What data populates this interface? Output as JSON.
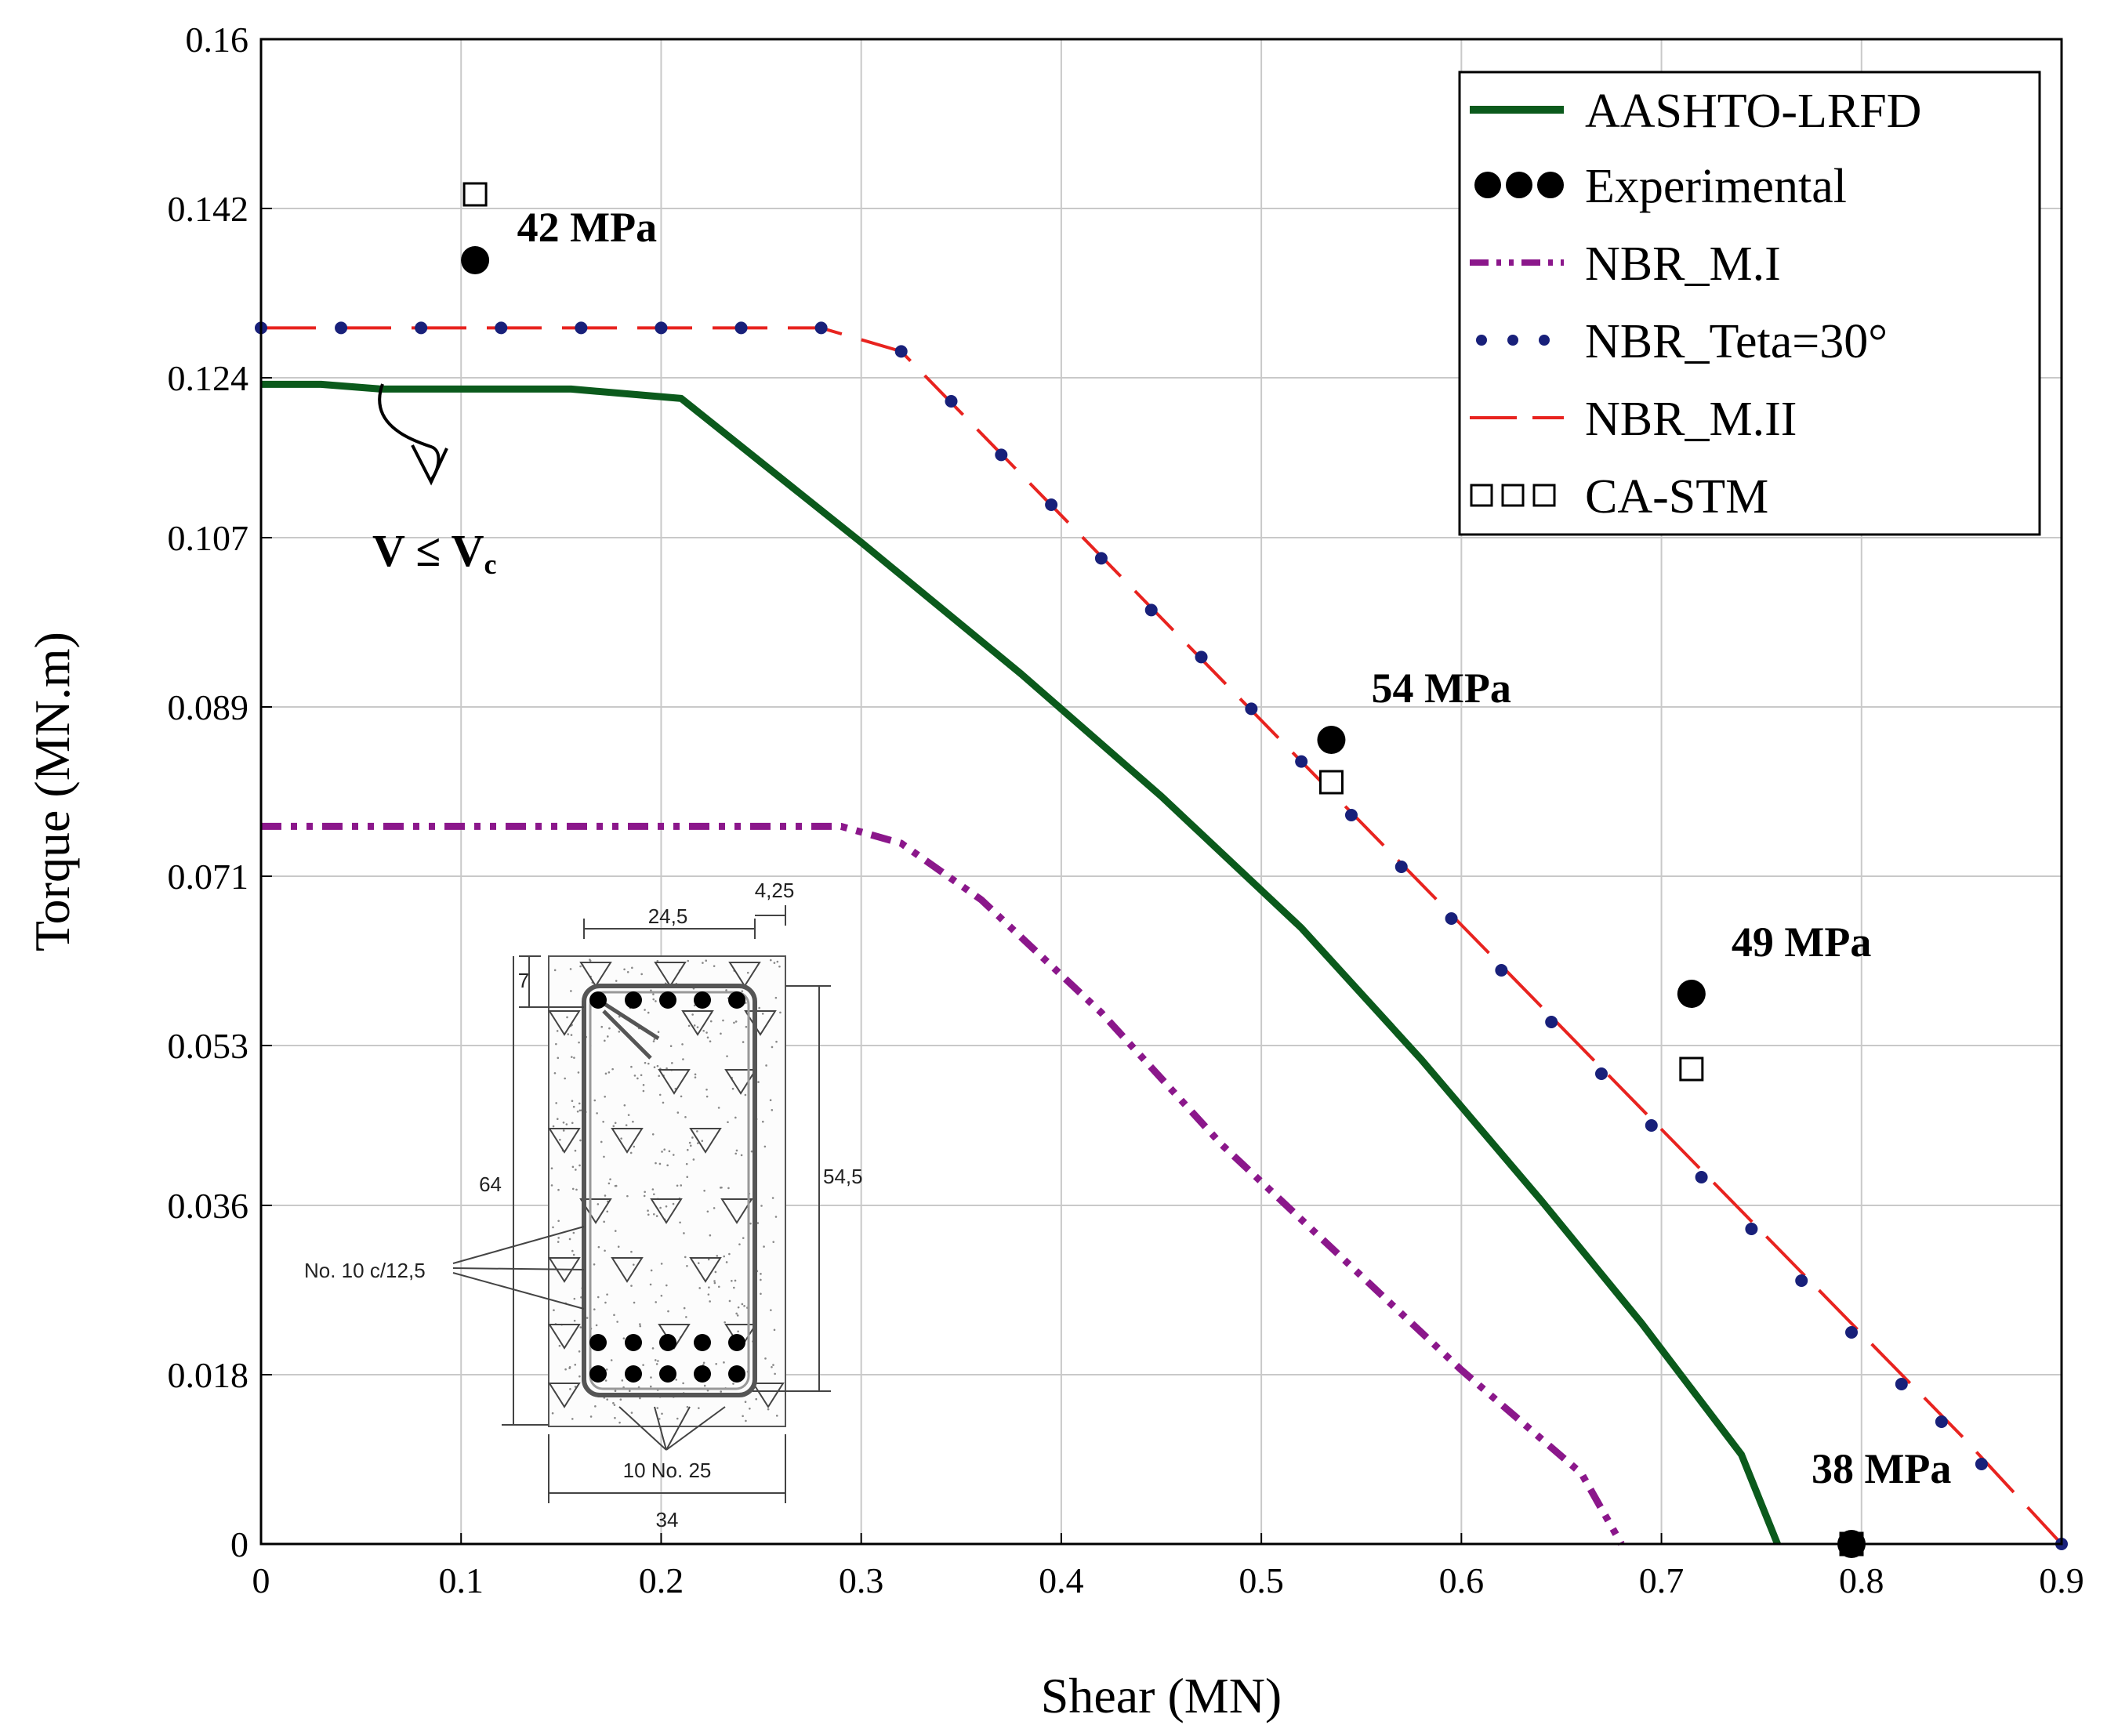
{
  "chart_data": {
    "type": "line",
    "xlabel": "Shear (MN)",
    "ylabel": "Torque (MN.m)",
    "xlim": [
      0,
      0.9
    ],
    "ylim": [
      0,
      0.16
    ],
    "grid": true,
    "legend_position": "top-right",
    "x_ticks": [
      "0",
      "0.1",
      "0.2",
      "0.3",
      "0.4",
      "0.5",
      "0.6",
      "0.7",
      "0.8",
      "0.9"
    ],
    "y_ticks": [
      "0",
      "0.018",
      "0.036",
      "0.053",
      "0.071",
      "0.089",
      "0.107",
      "0.124",
      "0.142",
      "0.16"
    ],
    "series": [
      {
        "name": "AASHTO-LRFD",
        "style": "solid",
        "color": "#0b5a1c",
        "points": [
          [
            0,
            0.1233
          ],
          [
            0.03,
            0.1233
          ],
          [
            0.06,
            0.1228
          ],
          [
            0.155,
            0.1228
          ],
          [
            0.21,
            0.1218
          ],
          [
            0.3,
            0.1065
          ],
          [
            0.38,
            0.0925
          ],
          [
            0.45,
            0.0795
          ],
          [
            0.52,
            0.0655
          ],
          [
            0.58,
            0.0515
          ],
          [
            0.64,
            0.0365
          ],
          [
            0.69,
            0.0235
          ],
          [
            0.74,
            0.0095
          ],
          [
            0.758,
            0
          ]
        ]
      },
      {
        "name": "Experimental",
        "style": "markers-filled-circle",
        "color": "#000000",
        "points": [
          [
            0.107,
            0.1365
          ],
          [
            0.535,
            0.0855
          ],
          [
            0.715,
            0.0585
          ],
          [
            0.795,
            0
          ]
        ]
      },
      {
        "name": "NBR_M.I",
        "style": "dash-dot",
        "color": "#8b178b",
        "points": [
          [
            0,
            0.0763
          ],
          [
            0.29,
            0.0763
          ],
          [
            0.32,
            0.0745
          ],
          [
            0.36,
            0.0685
          ],
          [
            0.42,
            0.0565
          ],
          [
            0.48,
            0.0425
          ],
          [
            0.54,
            0.0305
          ],
          [
            0.6,
            0.0185
          ],
          [
            0.66,
            0.0075
          ],
          [
            0.68,
            0
          ]
        ]
      },
      {
        "name": "NBR_Teta=30°",
        "style": "dotted",
        "color": "#18207a",
        "points": [
          [
            0,
            0.1293
          ],
          [
            0.04,
            0.1293
          ],
          [
            0.08,
            0.1293
          ],
          [
            0.12,
            0.1293
          ],
          [
            0.16,
            0.1293
          ],
          [
            0.2,
            0.1293
          ],
          [
            0.24,
            0.1293
          ],
          [
            0.28,
            0.1293
          ],
          [
            0.32,
            0.1268
          ],
          [
            0.345,
            0.1215
          ],
          [
            0.37,
            0.1158
          ],
          [
            0.395,
            0.1105
          ],
          [
            0.42,
            0.1048
          ],
          [
            0.445,
            0.0993
          ],
          [
            0.47,
            0.0943
          ],
          [
            0.495,
            0.0888
          ],
          [
            0.52,
            0.0832
          ],
          [
            0.545,
            0.0775
          ],
          [
            0.57,
            0.072
          ],
          [
            0.595,
            0.0665
          ],
          [
            0.62,
            0.061
          ],
          [
            0.645,
            0.0555
          ],
          [
            0.67,
            0.05
          ],
          [
            0.695,
            0.0445
          ],
          [
            0.72,
            0.039
          ],
          [
            0.745,
            0.0335
          ],
          [
            0.77,
            0.028
          ],
          [
            0.795,
            0.0225
          ],
          [
            0.82,
            0.017
          ],
          [
            0.84,
            0.013
          ],
          [
            0.86,
            0.0085
          ],
          [
            0.9,
            0
          ]
        ]
      },
      {
        "name": "NBR_M.II",
        "style": "long-dash",
        "color": "#e8231f",
        "points": [
          [
            0,
            0.1293
          ],
          [
            0.28,
            0.1293
          ],
          [
            0.32,
            0.1268
          ],
          [
            0.52,
            0.0832
          ],
          [
            0.85,
            0.0115
          ],
          [
            0.9,
            0
          ]
        ]
      },
      {
        "name": "CA-STM",
        "style": "markers-open-square",
        "color": "#000000",
        "points": [
          [
            0.107,
            0.1435
          ],
          [
            0.535,
            0.081
          ],
          [
            0.715,
            0.0505
          ],
          [
            0.795,
            0
          ]
        ]
      }
    ],
    "annotations": [
      {
        "text": "42 MPa",
        "x": 0.128,
        "y": 0.1385
      },
      {
        "text": "54 MPa",
        "x": 0.555,
        "y": 0.0895
      },
      {
        "text": "49 MPa",
        "x": 0.735,
        "y": 0.0625
      },
      {
        "text": "38 MPa",
        "x": 0.775,
        "y": 0.0065
      }
    ],
    "condition_note": {
      "prefix": "V ≤ V",
      "subscript": "c"
    },
    "inset": {
      "top_dims": [
        "24,5",
        "4,25"
      ],
      "cover": "7",
      "height_total": "64",
      "height_inner": "54,5",
      "stirrup": "No. 10  c/12,5",
      "bars": "10 No. 25",
      "width": "34"
    }
  }
}
